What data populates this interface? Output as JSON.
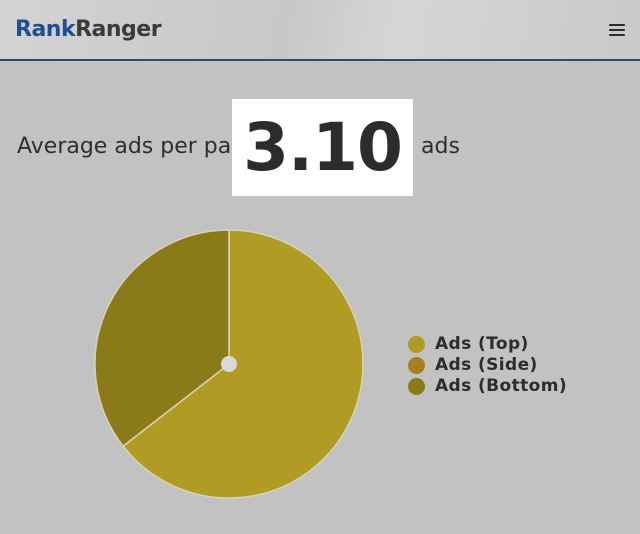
{
  "header": {
    "logo_part1": "Rank",
    "logo_part2": "Ranger",
    "menu_icon": "hamburger-menu-icon"
  },
  "metric": {
    "label": "Average ads per page:",
    "value": "3.10",
    "unit": "ads"
  },
  "colors": {
    "background": "#c2c2c2",
    "header_border": "#2f4a6b",
    "logo_blue": "#1d4f91",
    "ads_top": "#b09c25",
    "ads_side": "#a57f22",
    "ads_bottom": "#8a7a18"
  },
  "chart_data": {
    "type": "pie",
    "title": "",
    "categories": [
      "Ads (Top)",
      "Ads (Side)",
      "Ads (Bottom)"
    ],
    "values": [
      64.5,
      0,
      35.5
    ],
    "colors": [
      "#b09c25",
      "#a57f22",
      "#8a7a18"
    ],
    "legend_position": "right",
    "legend": [
      "Ads (Top)",
      "Ads (Side)",
      "Ads (Bottom)"
    ]
  }
}
